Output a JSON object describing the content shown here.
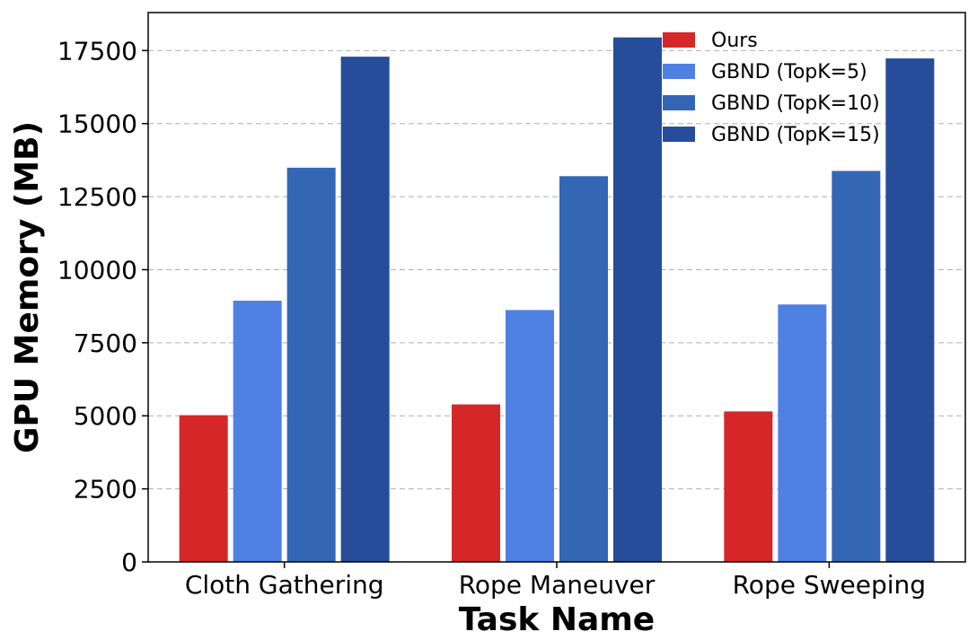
{
  "chart_data": {
    "type": "bar",
    "title": "",
    "xlabel": "Task Name",
    "ylabel": "GPU Memory (MB)",
    "categories": [
      "Cloth Gathering",
      "Rope Maneuver",
      "Rope Sweeping"
    ],
    "ylim": [
      0,
      18800
    ],
    "yticks": [
      0,
      2500,
      5000,
      7500,
      10000,
      12500,
      15000,
      17500
    ],
    "grid": true,
    "legend_position": "top-right",
    "series": [
      {
        "name": "Ours",
        "color": "#d62728",
        "values": [
          5020,
          5390,
          5150
        ]
      },
      {
        "name": "GBND (TopK=5)",
        "color": "#4f81e3",
        "values": [
          8940,
          8620,
          8810
        ]
      },
      {
        "name": "GBND (TopK=10)",
        "color": "#3366b5",
        "values": [
          13490,
          13200,
          13380
        ]
      },
      {
        "name": "GBND (TopK=15)",
        "color": "#254d99",
        "values": [
          17290,
          17950,
          17230
        ]
      }
    ]
  }
}
